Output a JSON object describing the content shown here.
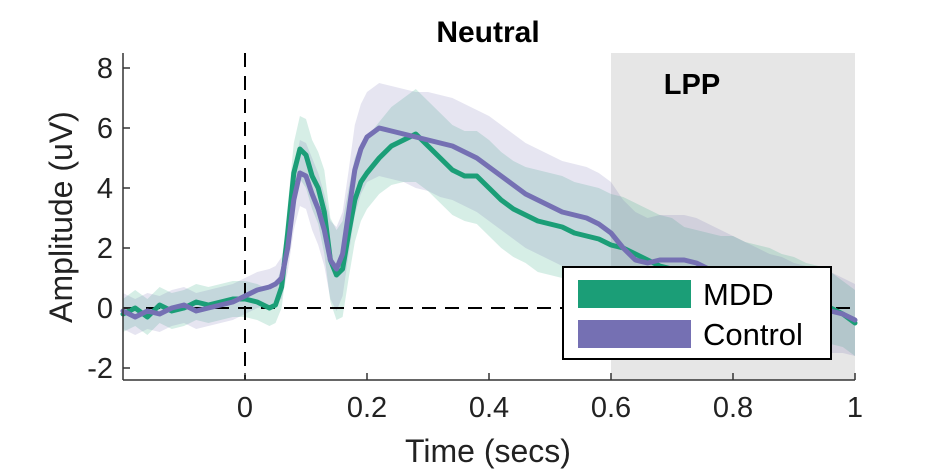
{
  "chart_data": {
    "type": "line",
    "title": "Neutral",
    "xlabel": "Time (secs)",
    "ylabel": "Amplitude (uV)",
    "xlim": [
      -0.2,
      1.0
    ],
    "ylim": [
      -2.4,
      8.5
    ],
    "xticks": [
      0,
      0.2,
      0.4,
      0.6,
      0.8,
      1
    ],
    "xtick_labels": [
      "0",
      "0.2",
      "0.4",
      "0.6",
      "0.8",
      "1"
    ],
    "yticks": [
      -2,
      0,
      2,
      4,
      6,
      8
    ],
    "ytick_labels": [
      "-2",
      "0",
      "2",
      "4",
      "6",
      "8"
    ],
    "grid": false,
    "legend_position": "bottom-right",
    "reference_lines": {
      "x_zero": "dashed",
      "y_zero": "dashed"
    },
    "shaded_region": {
      "label": "LPP",
      "x_range": [
        0.6,
        1.0
      ],
      "color": "#e6e6e6"
    },
    "x": [
      -0.2,
      -0.18,
      -0.16,
      -0.14,
      -0.12,
      -0.1,
      -0.08,
      -0.06,
      -0.04,
      -0.02,
      0,
      0.02,
      0.04,
      0.05,
      0.06,
      0.07,
      0.08,
      0.09,
      0.1,
      0.11,
      0.12,
      0.13,
      0.14,
      0.15,
      0.16,
      0.17,
      0.18,
      0.19,
      0.2,
      0.22,
      0.24,
      0.26,
      0.28,
      0.3,
      0.32,
      0.34,
      0.36,
      0.38,
      0.4,
      0.42,
      0.44,
      0.46,
      0.48,
      0.5,
      0.52,
      0.54,
      0.56,
      0.58,
      0.6,
      0.62,
      0.64,
      0.66,
      0.68,
      0.7,
      0.72,
      0.74,
      0.76,
      0.78,
      0.8,
      0.82,
      0.84,
      0.86,
      0.88,
      0.9,
      0.92,
      0.94,
      0.96,
      0.98,
      1.0
    ],
    "series": [
      {
        "name": "MDD",
        "color": "#1b9e77",
        "values": [
          -0.2,
          0.0,
          -0.3,
          0.1,
          -0.1,
          0.0,
          0.2,
          0.1,
          0.2,
          0.3,
          0.3,
          0.2,
          0.0,
          0.1,
          0.7,
          2.5,
          4.5,
          5.3,
          5.1,
          4.4,
          4.0,
          3.2,
          1.6,
          1.1,
          1.3,
          2.5,
          3.6,
          4.2,
          4.5,
          5.0,
          5.4,
          5.6,
          5.8,
          5.4,
          5.0,
          4.6,
          4.4,
          4.4,
          4.0,
          3.6,
          3.3,
          3.1,
          2.9,
          2.8,
          2.7,
          2.5,
          2.4,
          2.3,
          2.1,
          2.0,
          1.8,
          1.6,
          1.4,
          1.3,
          1.1,
          1.0,
          0.9,
          0.8,
          0.8,
          0.7,
          0.6,
          0.5,
          0.4,
          0.3,
          0.2,
          0.1,
          0.0,
          -0.2,
          -0.5
        ],
        "ci_lower": [
          -0.8,
          -0.6,
          -0.9,
          -0.5,
          -0.7,
          -0.6,
          -0.4,
          -0.5,
          -0.4,
          -0.3,
          -0.3,
          -0.4,
          -0.6,
          -0.5,
          0.0,
          1.6,
          3.5,
          4.3,
          4.0,
          3.3,
          2.8,
          1.8,
          0.2,
          -0.4,
          -0.3,
          1.0,
          2.2,
          2.9,
          3.3,
          3.8,
          4.1,
          4.2,
          4.2,
          3.9,
          3.5,
          3.1,
          2.9,
          2.8,
          2.4,
          2.0,
          1.7,
          1.5,
          1.2,
          1.1,
          1.0,
          0.8,
          0.7,
          0.6,
          0.4,
          0.3,
          0.1,
          -0.1,
          -0.3,
          -0.4,
          -0.5,
          -0.6,
          -0.7,
          -0.8,
          -0.8,
          -0.8,
          -0.9,
          -1.0,
          -1.0,
          -1.1,
          -1.1,
          -1.2,
          -1.2,
          -1.3,
          -1.6
        ],
        "ci_upper": [
          0.3,
          0.6,
          0.3,
          0.7,
          0.5,
          0.6,
          0.8,
          0.7,
          0.8,
          0.9,
          0.9,
          0.8,
          0.6,
          0.7,
          1.4,
          3.4,
          5.5,
          6.4,
          6.3,
          5.6,
          5.2,
          4.6,
          3.0,
          2.6,
          2.9,
          4.0,
          5.0,
          5.5,
          5.7,
          6.2,
          6.7,
          7.0,
          7.3,
          6.9,
          6.5,
          6.1,
          5.9,
          5.9,
          5.6,
          5.2,
          4.9,
          4.7,
          4.6,
          4.5,
          4.4,
          4.2,
          4.1,
          4.0,
          3.8,
          3.7,
          3.5,
          3.3,
          3.1,
          3.0,
          2.7,
          2.6,
          2.5,
          2.4,
          2.4,
          2.2,
          2.1,
          2.0,
          1.8,
          1.7,
          1.5,
          1.4,
          1.2,
          0.9,
          0.6
        ]
      },
      {
        "name": "Control",
        "color": "#7570b3",
        "values": [
          -0.1,
          -0.3,
          -0.1,
          -0.2,
          0.0,
          0.1,
          -0.1,
          0.0,
          0.1,
          0.2,
          0.4,
          0.6,
          0.7,
          0.8,
          1.0,
          2.0,
          3.6,
          4.5,
          4.4,
          3.8,
          3.3,
          2.6,
          1.6,
          1.3,
          1.8,
          3.2,
          4.6,
          5.3,
          5.7,
          6.0,
          5.9,
          5.8,
          5.7,
          5.6,
          5.5,
          5.4,
          5.2,
          5.0,
          4.7,
          4.4,
          4.1,
          3.8,
          3.6,
          3.4,
          3.2,
          3.1,
          3.0,
          2.8,
          2.5,
          2.0,
          1.6,
          1.5,
          1.6,
          1.6,
          1.6,
          1.5,
          1.3,
          1.1,
          0.9,
          0.7,
          0.5,
          0.4,
          0.3,
          0.2,
          0.1,
          0.0,
          -0.1,
          -0.2,
          -0.4
        ],
        "ci_lower": [
          -0.7,
          -0.9,
          -0.7,
          -0.8,
          -0.6,
          -0.5,
          -0.7,
          -0.6,
          -0.5,
          -0.4,
          -0.2,
          0.0,
          0.1,
          0.2,
          0.3,
          1.2,
          2.6,
          3.4,
          3.3,
          2.6,
          2.1,
          1.4,
          0.3,
          -0.1,
          0.4,
          1.8,
          3.1,
          3.8,
          4.2,
          4.4,
          4.3,
          4.2,
          4.0,
          3.9,
          3.7,
          3.6,
          3.4,
          3.2,
          2.9,
          2.6,
          2.3,
          2.0,
          1.8,
          1.6,
          1.4,
          1.3,
          1.2,
          1.0,
          0.8,
          0.4,
          0.0,
          -0.1,
          0.0,
          0.0,
          0.0,
          -0.1,
          -0.3,
          -0.5,
          -0.7,
          -0.9,
          -1.0,
          -1.1,
          -1.2,
          -1.2,
          -1.3,
          -1.4,
          -1.5,
          -1.5,
          -1.6
        ],
        "ci_upper": [
          0.5,
          0.3,
          0.5,
          0.4,
          0.6,
          0.7,
          0.5,
          0.6,
          0.7,
          0.8,
          1.0,
          1.2,
          1.3,
          1.4,
          1.7,
          2.8,
          4.6,
          5.6,
          5.5,
          5.0,
          4.5,
          3.8,
          2.9,
          2.7,
          3.2,
          4.6,
          6.1,
          6.8,
          7.2,
          7.5,
          7.4,
          7.3,
          7.2,
          7.2,
          7.1,
          7.0,
          6.8,
          6.6,
          6.4,
          6.1,
          5.8,
          5.5,
          5.3,
          5.1,
          4.9,
          4.8,
          4.7,
          4.5,
          4.2,
          3.6,
          3.2,
          3.0,
          3.1,
          3.1,
          3.1,
          3.0,
          2.8,
          2.6,
          2.4,
          2.2,
          2.0,
          1.8,
          1.7,
          1.5,
          1.4,
          1.3,
          1.2,
          1.0,
          0.8
        ]
      }
    ]
  }
}
